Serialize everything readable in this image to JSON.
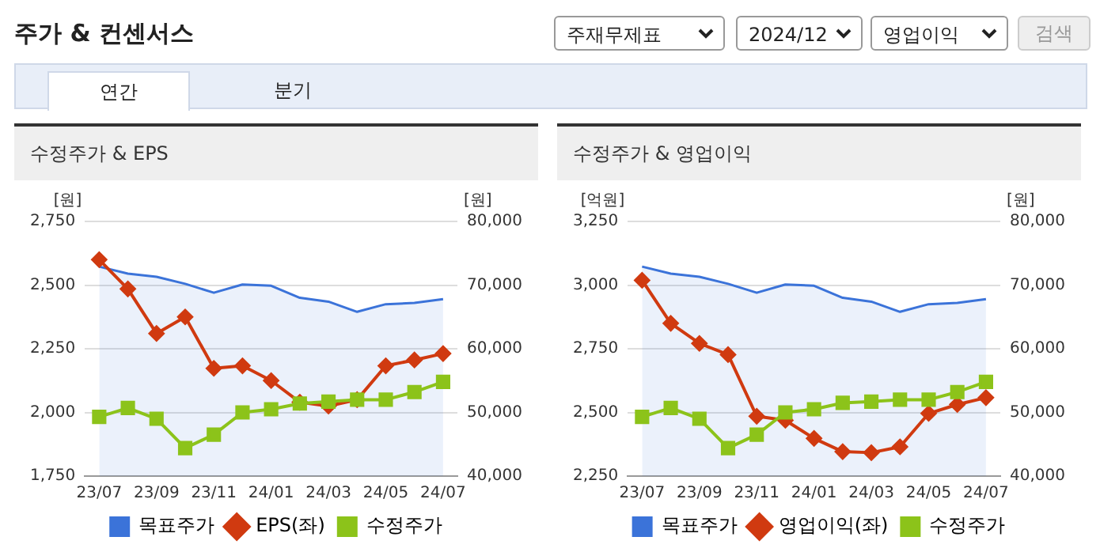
{
  "chart_data": [
    {
      "type": "other",
      "title": "주가 & 컨센서스",
      "annotations": [
        "주재무제표",
        "2024/12",
        "영업이익",
        "검색",
        "연간",
        "분기"
      ]
    },
    {
      "type": "line",
      "title": "수정주가 & EPS",
      "ylabel": "[원]",
      "y2label": "[원]",
      "categories": [
        "23/07",
        null,
        "23/09",
        null,
        "23/11",
        null,
        "24/01",
        null,
        "24/03",
        null,
        "24/05",
        null,
        "24/07"
      ],
      "series": [
        {
          "name": "목표주가",
          "type": "area",
          "axis": "y2",
          "color": "#3b73d9",
          "values": [
            72900,
            71800,
            71300,
            70200,
            68800,
            70100,
            69900,
            68000,
            67400,
            65800,
            67000,
            67200,
            67800
          ]
        },
        {
          "name": "EPS(좌)",
          "color": "#d03a10",
          "marker": "diamond",
          "values": [
            2600,
            2485,
            2310,
            2375,
            2173,
            2183,
            2125,
            2040,
            2025,
            2050,
            2183,
            2206,
            2231
          ]
        },
        {
          "name": "수정주가",
          "axis": "y2",
          "color": "#8cc31a",
          "marker": "square",
          "values": [
            49300,
            50700,
            49000,
            44400,
            46500,
            50000,
            50500,
            51400,
            51700,
            52000,
            52000,
            53200,
            54800
          ]
        }
      ],
      "ylim": [
        1750,
        2750
      ],
      "yticks": [
        {
          "value": 1750,
          "label": "1,750"
        },
        {
          "value": 2000,
          "label": "2,000"
        },
        {
          "value": 2250,
          "label": "2,250"
        },
        {
          "value": 2500,
          "label": "2,500"
        },
        {
          "value": 2750,
          "label": "2,750"
        }
      ],
      "y2lim": [
        40000,
        80000
      ],
      "y2ticks": [
        {
          "value": 40000,
          "label": "40,000"
        },
        {
          "value": 50000,
          "label": "50,000"
        },
        {
          "value": 60000,
          "label": "60,000"
        },
        {
          "value": 70000,
          "label": "70,000"
        },
        {
          "value": 80000,
          "label": "80,000"
        }
      ],
      "grid": "y",
      "legend": "bottom"
    },
    {
      "type": "line",
      "title": "수정주가 & 영업이익",
      "ylabel": "[억원]",
      "y2label": "[원]",
      "categories": [
        "23/07",
        null,
        "23/09",
        null,
        "23/11",
        null,
        "24/01",
        null,
        "24/03",
        null,
        "24/05",
        null,
        "24/07"
      ],
      "series": [
        {
          "name": "목표주가",
          "type": "area",
          "axis": "y2",
          "color": "#3b73d9",
          "values": [
            72900,
            71800,
            71300,
            70200,
            68800,
            70100,
            69900,
            68000,
            67400,
            65800,
            67000,
            67200,
            67800
          ]
        },
        {
          "name": "영업이익(좌)",
          "color": "#d03a10",
          "marker": "diamond",
          "values": [
            3019,
            2850,
            2771,
            2727,
            2485,
            2469,
            2398,
            2346,
            2342,
            2365,
            2496,
            2531,
            2558
          ]
        },
        {
          "name": "수정주가",
          "axis": "y2",
          "color": "#8cc31a",
          "marker": "square",
          "values": [
            49300,
            50700,
            49000,
            44400,
            46500,
            50000,
            50500,
            51500,
            51700,
            52000,
            52000,
            53200,
            54800
          ]
        }
      ],
      "ylim": [
        2250,
        3250
      ],
      "yticks": [
        {
          "value": 2250,
          "label": "2,250"
        },
        {
          "value": 2500,
          "label": "2,500"
        },
        {
          "value": 2750,
          "label": "2,750"
        },
        {
          "value": 3000,
          "label": "3,000"
        },
        {
          "value": 3250,
          "label": "3,250"
        }
      ],
      "y2lim": [
        40000,
        80000
      ],
      "y2ticks": [
        {
          "value": 40000,
          "label": "40,000"
        },
        {
          "value": 50000,
          "label": "50,000"
        },
        {
          "value": 60000,
          "label": "60,000"
        },
        {
          "value": 70000,
          "label": "70,000"
        },
        {
          "value": 80000,
          "label": "80,000"
        }
      ],
      "grid": "y",
      "legend": "bottom"
    }
  ]
}
